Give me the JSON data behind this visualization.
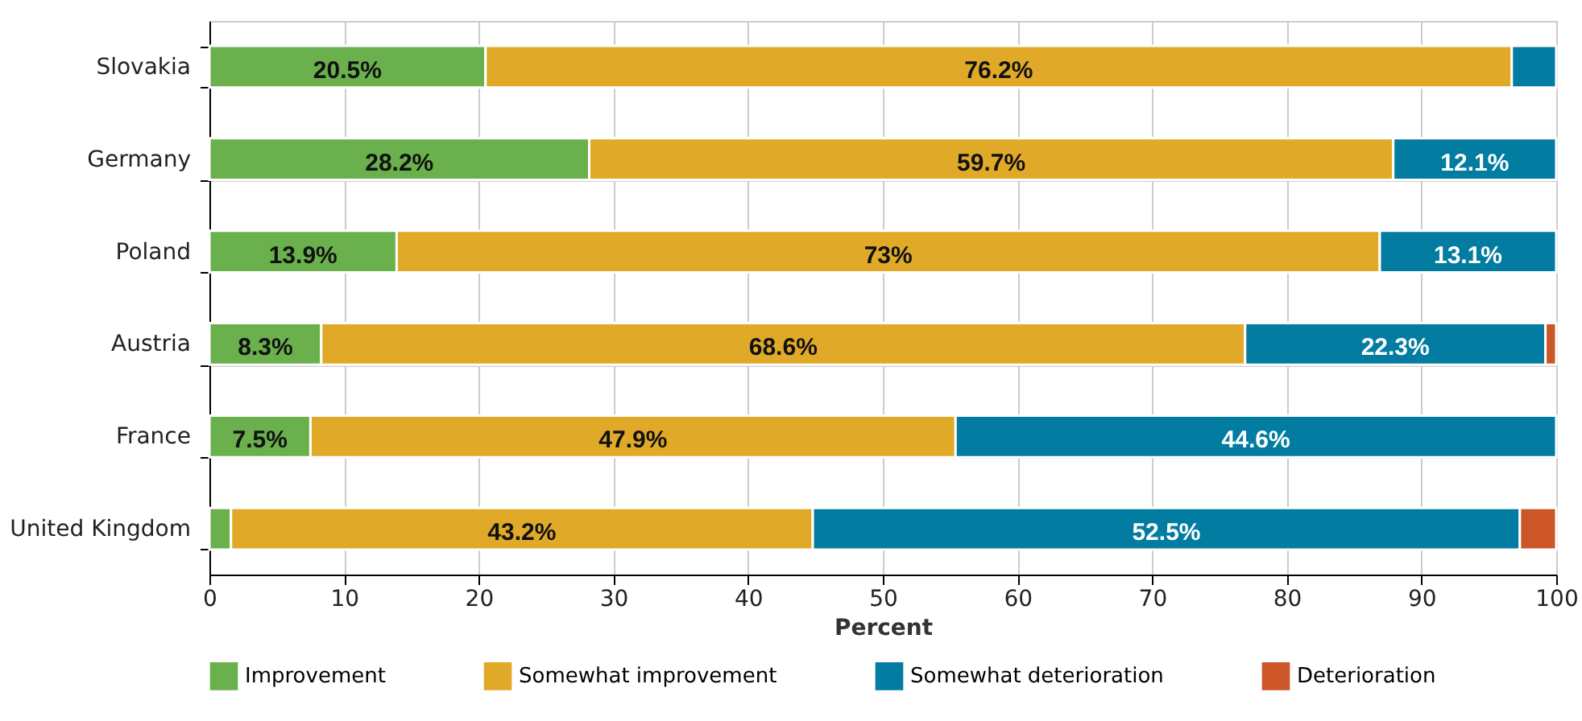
{
  "chart_data": {
    "type": "bar",
    "orientation": "horizontal",
    "stacked": true,
    "xlabel": "Percent",
    "categories": [
      "Slovakia",
      "Germany",
      "Poland",
      "Austria",
      "France",
      "United Kingdom"
    ],
    "series": [
      {
        "name": "Improvement",
        "color": "#6ab04c",
        "values": [
          20.5,
          28.2,
          13.9,
          8.3,
          7.5,
          1.6
        ],
        "value_labels": [
          "20.5%",
          "28.2%",
          "13.9%",
          "8.3%",
          "7.5%",
          null
        ]
      },
      {
        "name": "Somewhat improvement",
        "color": "#e0aa28",
        "values": [
          76.2,
          59.7,
          73,
          68.6,
          47.9,
          43.2
        ],
        "value_labels": [
          "76.2%",
          "59.7%",
          "73%",
          "68.6%",
          "47.9%",
          "43.2%"
        ]
      },
      {
        "name": "Somewhat deterioration",
        "color": "#027ca0",
        "values": [
          3.3,
          12.1,
          13.1,
          22.3,
          44.6,
          52.5
        ],
        "value_labels": [
          null,
          "12.1%",
          "13.1%",
          "22.3%",
          "44.6%",
          "52.5%"
        ]
      },
      {
        "name": "Deterioration",
        "color": "#cc5628",
        "values": [
          null,
          null,
          null,
          0.8,
          null,
          2.7
        ],
        "value_labels": [
          null,
          null,
          null,
          null,
          null,
          null
        ]
      }
    ],
    "xlim": [
      0,
      100
    ],
    "xticks": [
      0,
      10,
      20,
      30,
      40,
      50,
      60,
      70,
      80,
      90,
      100
    ],
    "grid": true,
    "legend": "bottom"
  }
}
